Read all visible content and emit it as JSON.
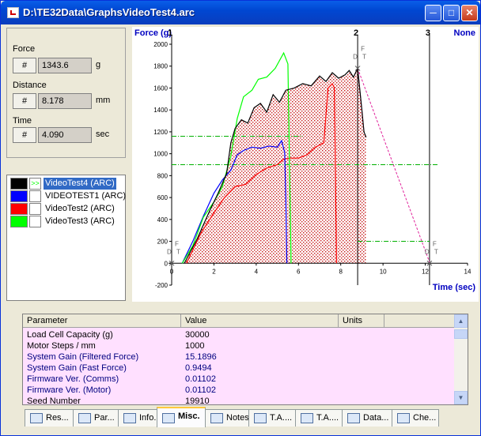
{
  "window": {
    "title": "D:\\TE32Data\\GraphsVideoTest4.arc"
  },
  "readouts": [
    {
      "label": "Force",
      "hash": "#",
      "value": "1343.6",
      "unit": "g"
    },
    {
      "label": "Distance",
      "hash": "#",
      "value": "8.178",
      "unit": "mm"
    },
    {
      "label": "Time",
      "hash": "#",
      "value": "4.090",
      "unit": "sec"
    }
  ],
  "legend": [
    {
      "name": "VideoTest4 (ARC)",
      "color": "#000000",
      "marker": ">>",
      "selected": true
    },
    {
      "name": "VIDEOTEST1 (ARC)",
      "color": "#0000ff"
    },
    {
      "name": "VideoTest2 (ARC)",
      "color": "#ff0000"
    },
    {
      "name": "VideoTest3 (ARC)",
      "color": "#00ff00"
    }
  ],
  "chart_data": {
    "type": "line",
    "ylabel": "Force (g)",
    "xlabel": "Time (sec)",
    "xlim": [
      0,
      14
    ],
    "ylim": [
      -200,
      2000
    ],
    "xticks": [
      0,
      2,
      4,
      6,
      8,
      10,
      12,
      14
    ],
    "yticks": [
      -200,
      0,
      200,
      400,
      600,
      800,
      1000,
      1200,
      1400,
      1600,
      1800,
      2000
    ],
    "markers": [
      {
        "label": "1",
        "x": 0
      },
      {
        "label": "2",
        "x": 8.8
      },
      {
        "label": "3",
        "x": 12.2
      },
      {
        "label": "None",
        "x": null
      }
    ],
    "point_labels": [
      "F",
      "D",
      "T"
    ],
    "series": [
      {
        "name": "VideoTest4 (ARC)",
        "color": "#000000",
        "x": [
          0.6,
          1.2,
          1.8,
          2.2,
          2.6,
          2.8,
          3.0,
          3.3,
          3.6,
          3.9,
          4.2,
          4.5,
          4.8,
          5.1,
          5.4,
          5.8,
          6.2,
          6.6,
          7.0,
          7.3,
          7.6,
          7.9,
          8.2,
          8.4,
          8.6,
          8.8,
          9.0,
          9.1,
          9.2
        ],
        "y": [
          0,
          220,
          480,
          640,
          820,
          1100,
          1230,
          1310,
          1280,
          1420,
          1460,
          1380,
          1540,
          1470,
          1580,
          1600,
          1640,
          1620,
          1710,
          1660,
          1740,
          1690,
          1720,
          1760,
          1700,
          1780,
          1400,
          1200,
          1150
        ]
      },
      {
        "name": "VIDEOTEST1 (ARC)",
        "color": "#0000ff",
        "x": [
          0.5,
          1.0,
          1.5,
          2.0,
          2.4,
          2.8,
          3.1,
          3.4,
          3.8,
          4.2,
          4.6,
          5.0,
          5.2,
          5.35,
          5.4,
          5.45
        ],
        "y": [
          0,
          200,
          430,
          640,
          760,
          850,
          990,
          1030,
          1060,
          1050,
          1070,
          1060,
          1120,
          1010,
          600,
          0
        ]
      },
      {
        "name": "VideoTest2 (ARC)",
        "color": "#ff0000",
        "x": [
          0.7,
          1.4,
          2.0,
          2.5,
          3.0,
          3.5,
          4.0,
          4.5,
          5.0,
          5.3,
          5.6,
          6.0,
          6.4,
          6.8,
          7.2,
          7.4,
          7.6,
          7.7,
          7.8
        ],
        "y": [
          0,
          280,
          460,
          600,
          700,
          720,
          810,
          870,
          900,
          950,
          960,
          960,
          990,
          1060,
          1100,
          1600,
          1640,
          1600,
          0
        ]
      },
      {
        "name": "VideoTest3 (ARC)",
        "color": "#00ff00",
        "x": [
          0.5,
          1.0,
          1.5,
          2.0,
          2.4,
          2.8,
          3.1,
          3.4,
          3.8,
          4.1,
          4.5,
          4.9,
          5.3,
          5.5,
          5.6,
          5.65
        ],
        "y": [
          0,
          160,
          420,
          560,
          700,
          980,
          1320,
          1520,
          1580,
          1680,
          1700,
          1780,
          1920,
          1820,
          600,
          0
        ]
      }
    ]
  },
  "params": {
    "headers": [
      "Parameter",
      "Value",
      "Units"
    ],
    "rows": [
      {
        "name": "Load Cell Capacity (g)",
        "value": "30000",
        "units": "",
        "color": "#000000"
      },
      {
        "name": "Motor Steps / mm",
        "value": "1000",
        "units": "",
        "color": "#000000"
      },
      {
        "name": "System Gain (Filtered Force)",
        "value": "15.1896",
        "units": "",
        "color": "#000080"
      },
      {
        "name": "System Gain (Fast Force)",
        "value": "0.9494",
        "units": "",
        "color": "#000080"
      },
      {
        "name": "Firmware Ver. (Comms)",
        "value": "0.01102",
        "units": "",
        "color": "#000080"
      },
      {
        "name": "Firmware Ver. (Motor)",
        "value": "0.01102",
        "units": "",
        "color": "#000080"
      },
      {
        "name": "Seed Number",
        "value": "19910",
        "units": "",
        "color": "#000000"
      }
    ]
  },
  "tabs": [
    {
      "label": "Res...",
      "icon": "results-icon"
    },
    {
      "label": "Par...",
      "icon": "params-icon"
    },
    {
      "label": "Info.",
      "icon": "info-icon"
    },
    {
      "label": "Misc.",
      "icon": "misc-icon",
      "active": true
    },
    {
      "label": "Notes",
      "icon": "notes-icon"
    },
    {
      "label": "T.A....",
      "icon": "ta-icon"
    },
    {
      "label": "T.A....",
      "icon": "ta2-icon"
    },
    {
      "label": "Data...",
      "icon": "data-icon"
    },
    {
      "label": "Che...",
      "icon": "check-icon"
    }
  ]
}
